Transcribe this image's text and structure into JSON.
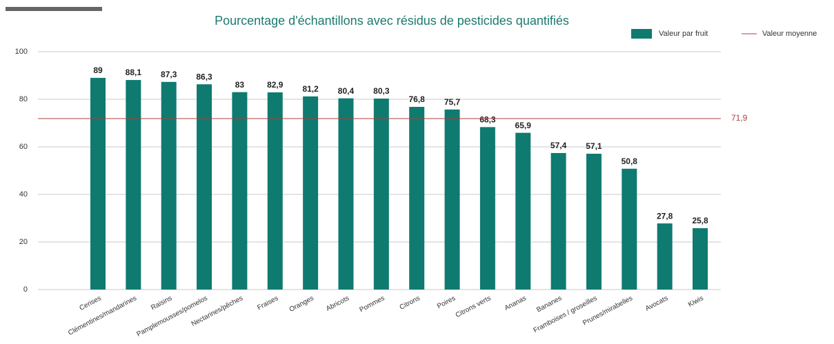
{
  "chart_data": {
    "type": "bar",
    "title": "Pourcentage d'échantillons avec résidus de pesticides quantifiés",
    "categories": [
      "Cerises",
      "Clémentines/mandarines",
      "Raisins",
      "Pamplemousses/pomelos",
      "Nectarines/pêches",
      "Fraises",
      "Oranges",
      "Abricots",
      "Pommes",
      "Citrons",
      "Poires",
      "Citrons verts",
      "Ananas",
      "Bananes",
      "Framboises / groseilles",
      "Prunes/mirabelles",
      "Avocats",
      "Kiwis"
    ],
    "series": [
      {
        "name": "Valeur par fruit",
        "color": "#0f7a70",
        "values": [
          89,
          88.1,
          87.3,
          86.3,
          83,
          82.9,
          81.2,
          80.4,
          80.3,
          76.8,
          75.7,
          68.3,
          65.9,
          57.4,
          57.1,
          50.8,
          27.8,
          25.8
        ],
        "value_labels": [
          "89",
          "88,1",
          "87,3",
          "86,3",
          "83",
          "82,9",
          "81,2",
          "80,4",
          "80,3",
          "76,8",
          "75,7",
          "68,3",
          "65,9",
          "57,4",
          "57,1",
          "50,8",
          "27,8",
          "25,8"
        ]
      }
    ],
    "average": {
      "name": "Valeur moyenne",
      "value": 71.9,
      "label": "71,9",
      "color": "#a8403c"
    },
    "ylim": [
      0,
      100
    ],
    "yticks": [
      0,
      20,
      40,
      60,
      80,
      100
    ],
    "grid": true,
    "legend": "top-right"
  }
}
